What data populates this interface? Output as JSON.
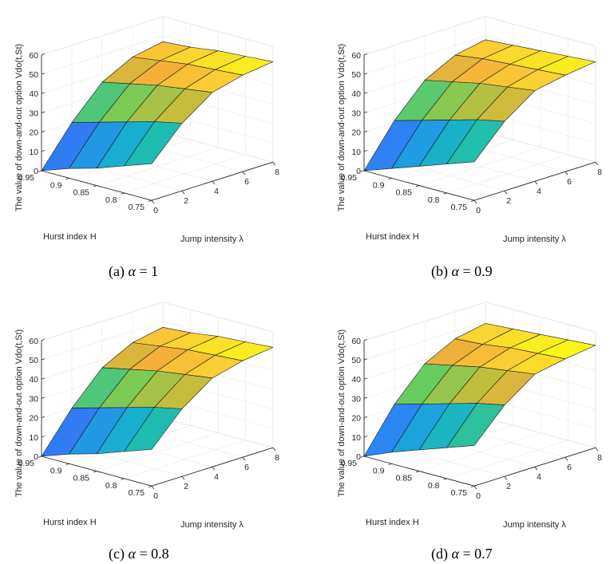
{
  "figure": {
    "type": "surface3d-panels"
  },
  "chart_data": [
    {
      "type": "surface3d",
      "panel": "(a)",
      "caption": {
        "label": "(a)",
        "alpha_symbol": "α",
        "alpha_value": "= 1"
      },
      "zlabel": "The value of down-and-out option Vdo(t,St)",
      "xlabel": "Jump intensity λ",
      "ylabel": "Hurst index H",
      "zticks": [
        "0",
        "10",
        "20",
        "30",
        "40",
        "50",
        "60"
      ],
      "xticks": [
        "0",
        "2",
        "4",
        "6",
        "8"
      ],
      "yticks": [
        "0.75",
        "0.8",
        "0.85",
        "0.9",
        "0.95"
      ],
      "zlim": [
        0,
        60
      ],
      "x": [
        0,
        2,
        4,
        6,
        8
      ],
      "y": [
        0.95,
        0.9,
        0.85,
        0.8,
        0.75
      ],
      "z": [
        [
          0,
          20,
          36,
          44,
          47
        ],
        [
          5,
          24,
          39,
          46,
          48
        ],
        [
          9,
          28,
          42,
          48,
          50
        ],
        [
          14,
          32,
          44,
          49,
          51
        ],
        [
          19,
          35,
          46,
          50,
          52
        ]
      ]
    },
    {
      "type": "surface3d",
      "panel": "(b)",
      "caption": {
        "label": "(b)",
        "alpha_symbol": "α",
        "alpha_value": "= 0.9"
      },
      "zlabel": "The value of down-and-out option Vdo(t,St)",
      "xlabel": "Jump intensity λ",
      "ylabel": "Hurst index H",
      "zticks": [
        "0",
        "10",
        "20",
        "30",
        "40",
        "50",
        "60"
      ],
      "xticks": [
        "0",
        "2",
        "4",
        "6",
        "8"
      ],
      "yticks": [
        "0.75",
        "0.8",
        "0.85",
        "0.9",
        "0.95"
      ],
      "zlim": [
        0,
        60
      ],
      "x": [
        0,
        2,
        4,
        6,
        8
      ],
      "y": [
        0.95,
        0.9,
        0.85,
        0.8,
        0.75
      ],
      "z": [
        [
          0,
          21,
          37,
          45,
          48
        ],
        [
          5,
          25,
          40,
          47,
          49
        ],
        [
          10,
          29,
          43,
          48,
          50
        ],
        [
          15,
          33,
          45,
          49,
          51
        ],
        [
          20,
          36,
          47,
          50,
          52
        ]
      ]
    },
    {
      "type": "surface3d",
      "panel": "(c)",
      "caption": {
        "label": "(c)",
        "alpha_symbol": "α",
        "alpha_value": "= 0.8"
      },
      "zlabel": "The value of down-and-out option Vdo(t,St)",
      "xlabel": "Jump intensity λ",
      "ylabel": "Hurst index H",
      "zticks": [
        "0",
        "10",
        "20",
        "30",
        "40",
        "50",
        "60"
      ],
      "xticks": [
        "0",
        "2",
        "4",
        "6",
        "8"
      ],
      "yticks": [
        "0.75",
        "0.8",
        "0.85",
        "0.9",
        "0.95"
      ],
      "zlim": [
        0,
        60
      ],
      "x": [
        0,
        2,
        4,
        6,
        8
      ],
      "y": [
        0.95,
        0.9,
        0.85,
        0.8,
        0.75
      ],
      "z": [
        [
          0,
          20,
          36,
          44,
          47
        ],
        [
          5,
          24,
          39,
          46,
          48
        ],
        [
          9,
          28,
          42,
          48,
          50
        ],
        [
          14,
          32,
          44,
          49,
          51
        ],
        [
          19,
          35,
          46,
          50,
          52
        ]
      ]
    },
    {
      "type": "surface3d",
      "panel": "(d)",
      "caption": {
        "label": "(d)",
        "alpha_symbol": "α",
        "alpha_value": "= 0.7"
      },
      "zlabel": "The value of down-and-out option Vdo(t,St)",
      "xlabel": "Jump intensity λ",
      "ylabel": "Hurst index H",
      "zticks": [
        "0",
        "10",
        "20",
        "30",
        "40",
        "50",
        "60"
      ],
      "xticks": [
        "0",
        "2",
        "4",
        "6",
        "8"
      ],
      "yticks": [
        "0.75",
        "0.8",
        "0.85",
        "0.9",
        "0.95"
      ],
      "zlim": [
        0,
        60
      ],
      "x": [
        0,
        2,
        4,
        6,
        8
      ],
      "y": [
        0.95,
        0.9,
        0.85,
        0.8,
        0.75
      ],
      "z": [
        [
          0,
          22,
          38,
          46,
          49
        ],
        [
          6,
          26,
          41,
          47,
          50
        ],
        [
          11,
          30,
          44,
          49,
          51
        ],
        [
          16,
          34,
          46,
          50,
          52
        ],
        [
          21,
          37,
          48,
          51,
          53
        ]
      ]
    }
  ]
}
